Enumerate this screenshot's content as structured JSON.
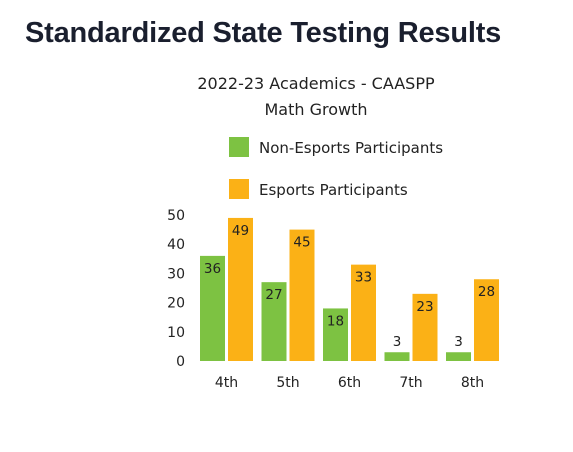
{
  "heading": "Standardized State Testing Results",
  "chart_data": {
    "type": "bar",
    "title_lines": [
      "2022-23 Academics - CAASPP",
      "Math Growth"
    ],
    "categories": [
      "4th",
      "5th",
      "6th",
      "7th",
      "8th"
    ],
    "series": [
      {
        "name": "Non-Esports Participants",
        "color": "#7dc242",
        "values": [
          36,
          27,
          18,
          3,
          3
        ]
      },
      {
        "name": "Esports Participants",
        "color": "#fbb116",
        "values": [
          49,
          45,
          33,
          23,
          28
        ]
      }
    ],
    "yticks": [
      "50",
      "40",
      "30",
      "20",
      "10",
      "0"
    ],
    "ylim": [
      0,
      50
    ],
    "grid": false,
    "legend_position": "top"
  }
}
